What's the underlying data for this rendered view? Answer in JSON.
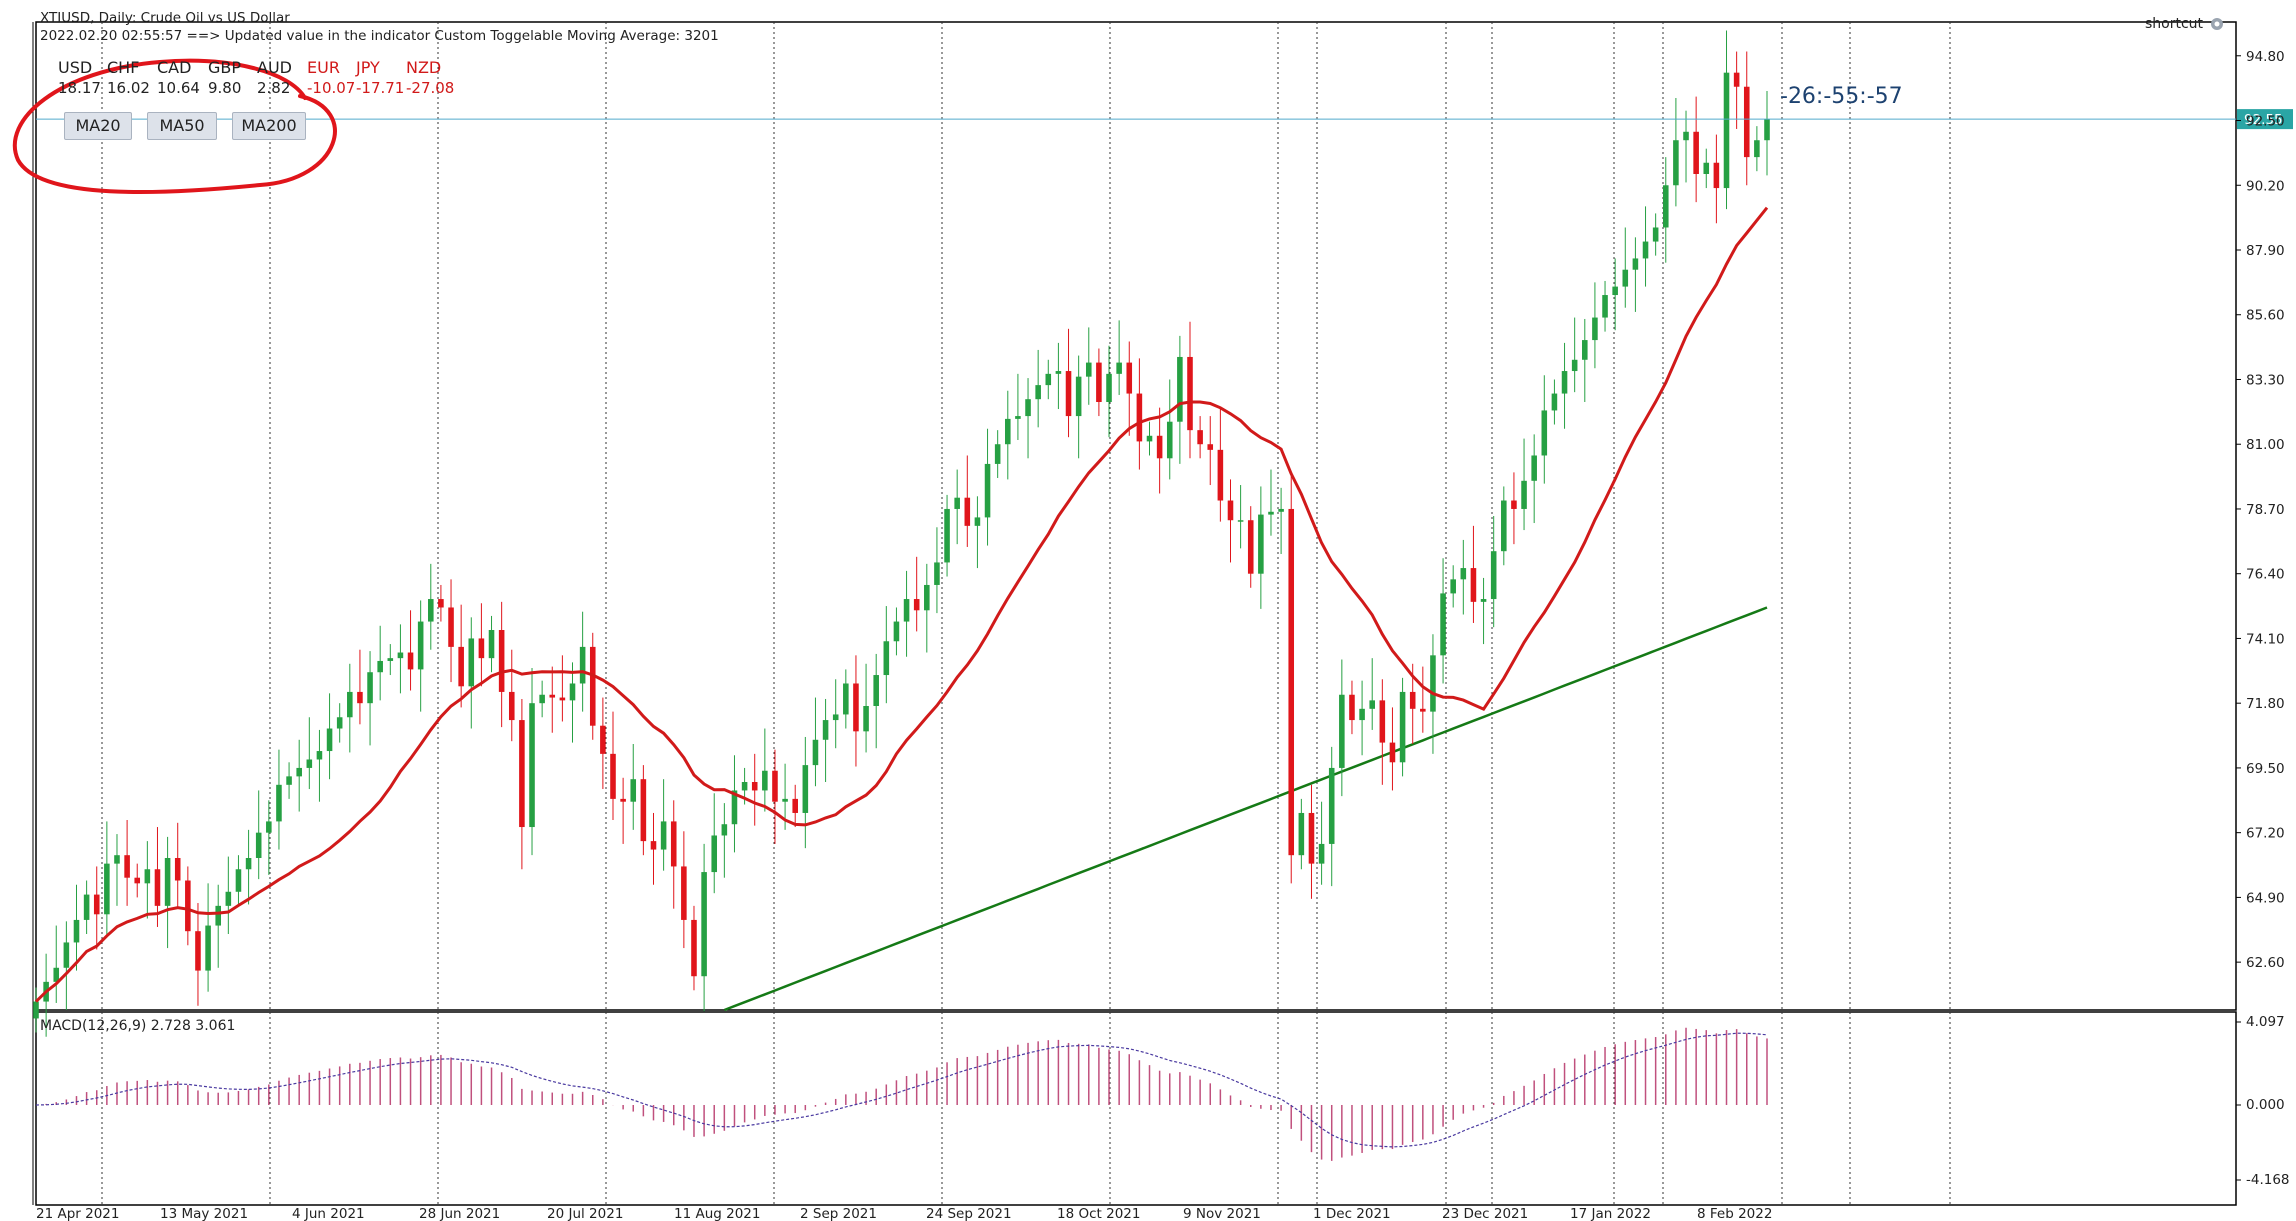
{
  "header": {
    "symbol_line": "XTIUSD, Daily:  Crude Oil vs US Dollar",
    "update_line": "2022.02.20 02:55:57 ==>  Updated value in the indicator Custom Toggelable Moving Average: 3201",
    "currency_strength": [
      {
        "code": "USD",
        "value": "18.17",
        "color": "#222222"
      },
      {
        "code": "CHF",
        "value": "16.02",
        "color": "#222222"
      },
      {
        "code": "CAD",
        "value": "10.64",
        "color": "#222222"
      },
      {
        "code": "GBP",
        "value": "9.80",
        "color": "#222222"
      },
      {
        "code": "AUD",
        "value": "2.82",
        "color": "#222222"
      },
      {
        "code": "EUR",
        "value": "-10.07",
        "color": "#d11a1a"
      },
      {
        "code": "JPY",
        "value": "-17.71",
        "color": "#d11a1a"
      },
      {
        "code": "NZD",
        "value": "-27.08",
        "color": "#d11a1a"
      }
    ]
  },
  "buttons": [
    {
      "label": "MA20"
    },
    {
      "label": "MA50"
    },
    {
      "label": "MA200"
    }
  ],
  "shortcut": {
    "label": "shortcut",
    "icon": "shortcut-icon"
  },
  "countdown": "-26:-55:-57",
  "colors": {
    "bull": "#26a043",
    "bear": "#e0151b",
    "ma20": "#d11a1a",
    "ma200": "#157a16",
    "macd_hist": "#c0507d",
    "macd_signal": "#4a3aa0",
    "price_line": "#52aacc",
    "price_tag_bg": "#2aa5a5",
    "annotation": "#e0151b"
  },
  "macd": {
    "label": "MACD(12,26,9) 2.728 3.061",
    "scale_top": "4.097",
    "scale_mid": "0.000",
    "scale_bottom": "-4.168"
  },
  "chart_data": {
    "type": "candlestick",
    "title": "XTIUSD, Daily:  Crude Oil vs US Dollar",
    "y_ticks": [
      "94.80",
      "92.50",
      "90.20",
      "87.90",
      "85.60",
      "83.30",
      "81.00",
      "78.70",
      "76.40",
      "74.10",
      "71.80",
      "69.50",
      "67.20",
      "64.90",
      "62.60"
    ],
    "x_ticks": [
      "21 Apr 2021",
      "13 May 2021",
      "4 Jun 2021",
      "28 Jun 2021",
      "20 Jul 2021",
      "11 Aug 2021",
      "2 Sep 2021",
      "24 Sep 2021",
      "18 Oct 2021",
      "9 Nov 2021",
      "1 Dec 2021",
      "23 Dec 2021",
      "17 Jan 2022",
      "8 Feb 2022"
    ],
    "current_price": "92.55",
    "ylim": [
      60.9,
      96.0
    ],
    "close": [
      61.2,
      61.9,
      62.4,
      63.3,
      64.1,
      65.0,
      64.3,
      66.1,
      66.4,
      65.6,
      65.4,
      65.9,
      64.6,
      66.3,
      65.5,
      63.7,
      62.3,
      63.9,
      64.6,
      65.1,
      65.9,
      66.3,
      67.2,
      67.6,
      68.9,
      69.2,
      69.5,
      69.8,
      70.1,
      70.9,
      71.3,
      72.2,
      71.8,
      72.9,
      73.3,
      73.4,
      73.6,
      73.0,
      74.7,
      75.5,
      75.2,
      73.8,
      72.4,
      74.1,
      73.4,
      74.4,
      72.2,
      71.2,
      67.4,
      71.8,
      72.1,
      72.0,
      71.9,
      72.5,
      73.8,
      71.0,
      70.0,
      68.4,
      68.3,
      69.1,
      66.9,
      66.6,
      67.6,
      66.0,
      64.1,
      62.1,
      65.8,
      67.1,
      67.5,
      68.7,
      69.0,
      68.7,
      69.4,
      68.3,
      68.4,
      67.9,
      69.6,
      70.5,
      71.2,
      71.4,
      72.5,
      70.8,
      71.7,
      72.8,
      74.0,
      74.7,
      75.5,
      75.1,
      76.0,
      76.8,
      78.7,
      79.1,
      78.1,
      78.4,
      80.3,
      81.0,
      81.9,
      82.0,
      82.6,
      83.1,
      83.5,
      83.6,
      82.0,
      83.4,
      83.9,
      82.5,
      83.5,
      83.9,
      82.8,
      81.1,
      81.3,
      80.5,
      81.8,
      84.1,
      81.5,
      81.0,
      80.8,
      79.0,
      78.3,
      78.3,
      76.4,
      78.5,
      78.6,
      78.7,
      66.4,
      67.9,
      66.1,
      66.8,
      69.5,
      72.1,
      71.2,
      71.6,
      71.9,
      70.4,
      69.7,
      72.2,
      71.6,
      71.5,
      73.5,
      75.7,
      76.2,
      76.6,
      75.4,
      75.5,
      77.2,
      79.0,
      78.7,
      79.7,
      80.6,
      82.2,
      82.8,
      83.6,
      84.0,
      84.7,
      85.5,
      86.3,
      86.6,
      87.2,
      87.6,
      88.2,
      88.7,
      90.2,
      91.8,
      92.1,
      90.6,
      91.0,
      90.1,
      94.2,
      93.7,
      91.2,
      91.8,
      92.55
    ]
  }
}
